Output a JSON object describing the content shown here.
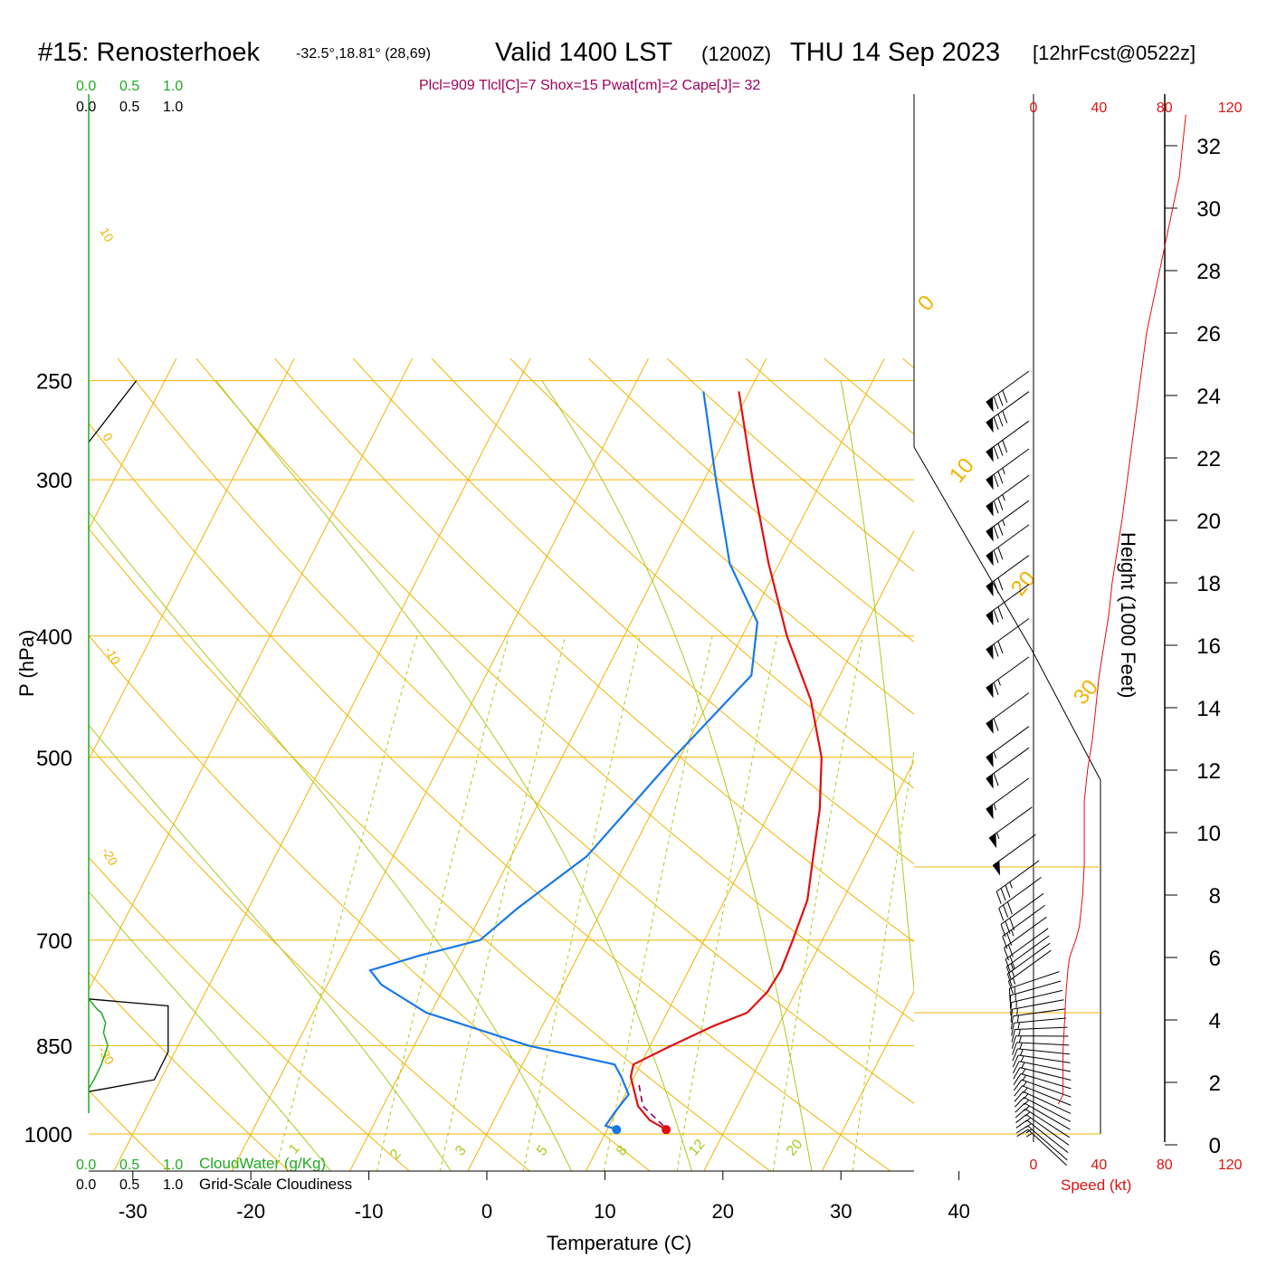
{
  "header": {
    "station": "#15: Renosterhoek",
    "coords": "-32.5°,18.81° (28,69)",
    "valid": "Valid 1400 LST",
    "zulu": "(1200Z)",
    "date": "THU 14 Sep 2023",
    "forecast": "[12hrFcst@0522z]"
  },
  "indices": "Plcl=909 Tlcl[C]=7 Shox=15 Pwat[cm]=2 Cape[J]= 32",
  "colors": {
    "isotherm": "#f0b400",
    "dry_adiabat": "#a8cc20",
    "temperature": "#e01010",
    "dewpoint": "#1878e8",
    "parcel": "#800060",
    "cloudwater": "#20aa20",
    "index_text": "#a0005a",
    "speed": "#e01010"
  },
  "cloud_scale": {
    "cloudwater_ticks": [
      "0.0",
      "0.5",
      "1.0"
    ],
    "cloudiness_ticks": [
      "0.0",
      "0.5",
      "1.0"
    ],
    "cloudwater_label": "CloudWater (g/Kg)",
    "cloudiness_label": "Grid-Scale Cloudiness"
  },
  "speed_axis": {
    "ticks": [
      "0",
      "40",
      "80",
      "120"
    ],
    "label": "Speed (kt)"
  },
  "chart_data": {
    "type": "skew-t",
    "xlabel": "Temperature (C)",
    "ylabel": "P (hPa)",
    "y2label": "Height (1000 Feet)",
    "x_ticks": [
      -30,
      -20,
      -10,
      0,
      10,
      20,
      30,
      40
    ],
    "p_ticks": [
      250,
      300,
      400,
      500,
      700,
      850,
      1000
    ],
    "height_ticks": [
      0,
      2,
      4,
      6,
      8,
      10,
      12,
      14,
      16,
      18,
      20,
      22,
      24,
      26,
      28,
      30,
      32
    ],
    "isotherm_labels": [
      "10",
      "0",
      "-10",
      "-20",
      "-30",
      "0",
      "10",
      "20",
      "30"
    ],
    "mixing_ratio_labels": [
      "1",
      "2",
      "3",
      "5",
      "8",
      "12",
      "20"
    ],
    "temperature": [
      [
        992,
        15.0
      ],
      [
        975,
        13.2
      ],
      [
        950,
        11.6
      ],
      [
        900,
        9.7
      ],
      [
        880,
        9.4
      ],
      [
        850,
        11.8
      ],
      [
        820,
        14.5
      ],
      [
        800,
        16.8
      ],
      [
        770,
        17.6
      ],
      [
        740,
        17.8
      ],
      [
        700,
        17.5
      ],
      [
        650,
        17.0
      ],
      [
        600,
        15.6
      ],
      [
        550,
        14.1
      ],
      [
        500,
        12.0
      ],
      [
        450,
        8.6
      ],
      [
        400,
        3.8
      ],
      [
        350,
        -0.9
      ],
      [
        300,
        -5.9
      ],
      [
        255,
        -10.9
      ]
    ],
    "dewpoint": [
      [
        992,
        10.8
      ],
      [
        985,
        9.7
      ],
      [
        960,
        9.9
      ],
      [
        930,
        10.3
      ],
      [
        900,
        8.9
      ],
      [
        880,
        7.8
      ],
      [
        850,
        -0.3
      ],
      [
        800,
        -10.4
      ],
      [
        760,
        -15.4
      ],
      [
        740,
        -17.0
      ],
      [
        720,
        -13.4
      ],
      [
        700,
        -9.0
      ],
      [
        660,
        -7.2
      ],
      [
        600,
        -3.6
      ],
      [
        500,
        -0.5
      ],
      [
        430,
        2.5
      ],
      [
        390,
        0.7
      ],
      [
        350,
        -4.2
      ],
      [
        300,
        -9.0
      ],
      [
        255,
        -13.9
      ]
    ],
    "parcel": [
      [
        985,
        14.6
      ],
      [
        950,
        12.0
      ],
      [
        909,
        10.6
      ]
    ],
    "cloudwater": [
      [
        780,
        0.0
      ],
      [
        795,
        0.08
      ],
      [
        800,
        0.12
      ],
      [
        815,
        0.16
      ],
      [
        830,
        0.14
      ],
      [
        850,
        0.18
      ],
      [
        880,
        0.12
      ],
      [
        905,
        0.05
      ],
      [
        920,
        0.0
      ]
    ],
    "cloudiness": [
      [
        780,
        0.0
      ],
      [
        790,
        0.75
      ],
      [
        860,
        0.75
      ],
      [
        905,
        0.62
      ],
      [
        925,
        0.0
      ]
    ],
    "cloudiness_top": [
      [
        250,
        0.45
      ],
      [
        280,
        0.0
      ]
    ],
    "wind_speed_profile": [
      [
        1.3,
        15
      ],
      [
        1.6,
        18
      ],
      [
        2.0,
        18
      ],
      [
        3.0,
        18
      ],
      [
        4.0,
        19
      ],
      [
        5.0,
        20
      ],
      [
        5.6,
        21
      ],
      [
        6.0,
        22
      ],
      [
        6.6,
        26
      ],
      [
        7.0,
        28
      ],
      [
        8.0,
        30
      ],
      [
        9.0,
        31
      ],
      [
        10.0,
        31
      ],
      [
        11.0,
        31
      ],
      [
        12.0,
        33
      ],
      [
        13.0,
        36
      ],
      [
        14.0,
        38
      ],
      [
        15.0,
        40
      ],
      [
        16.0,
        43
      ],
      [
        17.0,
        46
      ],
      [
        18.0,
        48
      ],
      [
        19.0,
        51
      ],
      [
        20.0,
        54
      ],
      [
        22.0,
        59
      ],
      [
        24.0,
        64
      ],
      [
        26.0,
        69
      ],
      [
        27.0,
        73
      ],
      [
        28.0,
        77
      ],
      [
        29.0,
        81
      ],
      [
        30.0,
        85
      ],
      [
        31.0,
        89
      ],
      [
        32.0,
        91
      ],
      [
        33.0,
        93
      ]
    ],
    "wind_barbs": [
      [
        992,
        15
      ],
      [
        985,
        15
      ],
      [
        975,
        15
      ],
      [
        965,
        15
      ],
      [
        955,
        15
      ],
      [
        945,
        15
      ],
      [
        935,
        15
      ],
      [
        925,
        15
      ],
      [
        915,
        15
      ],
      [
        905,
        15
      ],
      [
        895,
        15
      ],
      [
        885,
        15
      ],
      [
        875,
        15
      ],
      [
        865,
        15
      ],
      [
        855,
        15
      ],
      [
        845,
        15
      ],
      [
        835,
        15
      ],
      [
        825,
        15
      ],
      [
        815,
        15
      ],
      [
        805,
        15
      ],
      [
        795,
        15
      ],
      [
        785,
        15
      ],
      [
        775,
        15
      ],
      [
        765,
        15
      ],
      [
        755,
        15
      ],
      [
        745,
        15
      ],
      [
        735,
        15
      ],
      [
        725,
        20
      ],
      [
        710,
        20
      ],
      [
        695,
        25
      ],
      [
        680,
        30
      ],
      [
        660,
        30
      ],
      [
        640,
        35
      ],
      [
        610,
        50
      ],
      [
        580,
        55
      ],
      [
        550,
        55
      ],
      [
        520,
        60
      ],
      [
        500,
        55
      ],
      [
        470,
        60
      ],
      [
        440,
        65
      ],
      [
        410,
        70
      ],
      [
        385,
        70
      ],
      [
        365,
        70
      ],
      [
        345,
        70
      ],
      [
        330,
        75
      ],
      [
        315,
        75
      ],
      [
        300,
        75
      ],
      [
        285,
        80
      ],
      [
        270,
        80
      ],
      [
        260,
        80
      ]
    ]
  }
}
